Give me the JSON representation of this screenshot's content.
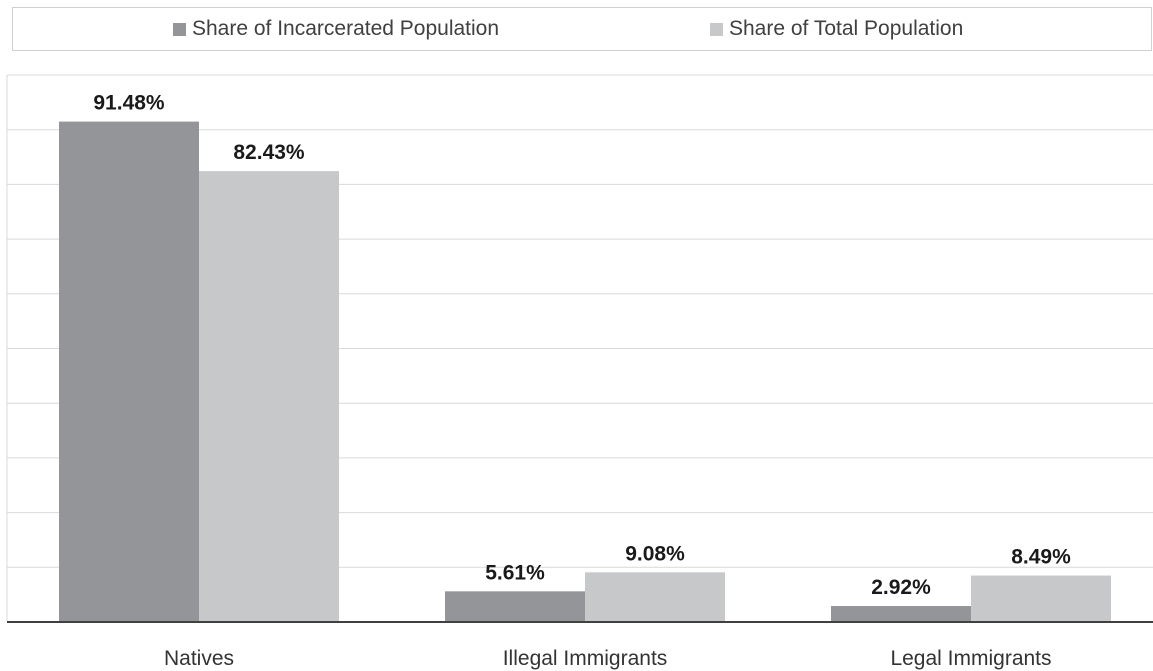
{
  "chart_data": {
    "type": "bar",
    "categories": [
      "Natives",
      "Illegal Immigrants",
      "Legal Immigrants"
    ],
    "series": [
      {
        "name": "Share of Incarcerated Population",
        "values": [
          91.48,
          5.61,
          2.92
        ],
        "labels": [
          "91.48%",
          "5.61%",
          "2.92%"
        ],
        "color": "#939598"
      },
      {
        "name": "Share of Total Population",
        "values": [
          82.43,
          9.08,
          8.49
        ],
        "labels": [
          "82.43%",
          "9.08%",
          "8.49%"
        ],
        "color": "#c7c8ca"
      }
    ],
    "ylim": [
      0,
      100
    ],
    "grid": true,
    "legend_position": "top",
    "title": "",
    "xlabel": "",
    "ylabel": ""
  }
}
